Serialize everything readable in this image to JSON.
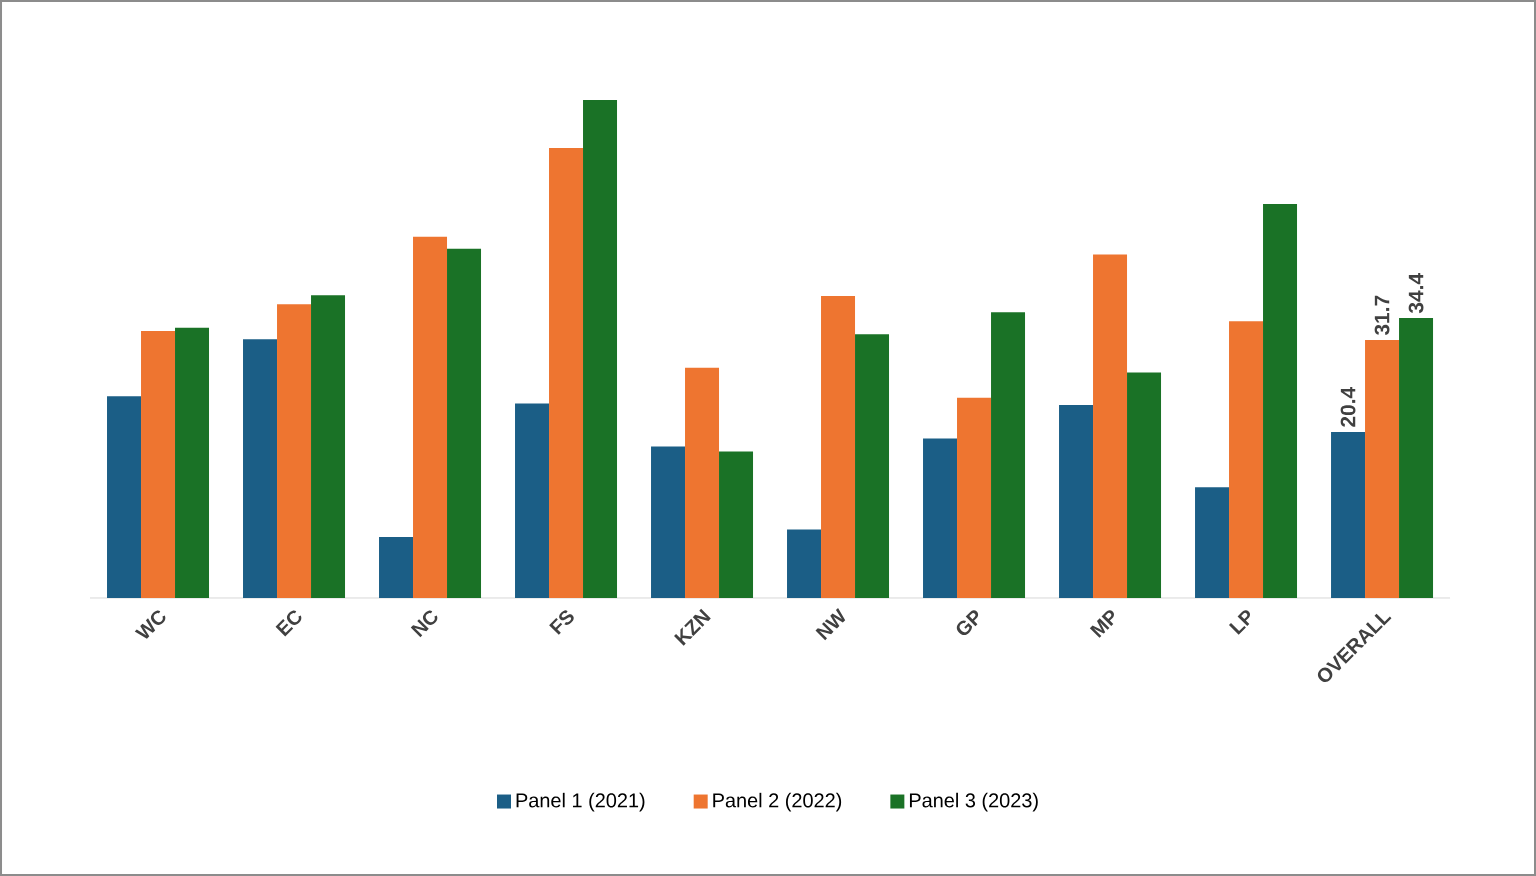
{
  "chart_data": {
    "type": "bar",
    "categories": [
      "WC",
      "EC",
      "NC",
      "FS",
      "KZN",
      "NW",
      "GP",
      "MP",
      "LP",
      "OVERALL"
    ],
    "series": [
      {
        "name": "Panel 1 (2021)",
        "color": "#1b5e86",
        "values": [
          24.8,
          31.8,
          7.5,
          23.9,
          18.6,
          8.4,
          19.6,
          23.7,
          13.6,
          20.4
        ],
        "value_labels": [
          null,
          null,
          null,
          null,
          null,
          null,
          null,
          null,
          null,
          "20.4"
        ]
      },
      {
        "name": "Panel 2 (2022)",
        "color": "#ee7530",
        "values": [
          32.8,
          36.1,
          44.4,
          55.3,
          28.3,
          37.1,
          24.6,
          42.2,
          34.0,
          31.7
        ],
        "value_labels": [
          null,
          null,
          null,
          null,
          null,
          null,
          null,
          null,
          null,
          "31.7"
        ]
      },
      {
        "name": "Panel 3 (2023)",
        "color": "#1a7226",
        "values": [
          33.2,
          37.2,
          42.9,
          61.2,
          18.0,
          32.4,
          35.1,
          27.7,
          48.4,
          34.4
        ],
        "value_labels": [
          null,
          null,
          null,
          null,
          null,
          null,
          null,
          null,
          null,
          "34.4"
        ]
      }
    ],
    "tick_labels": "x",
    "grid": false,
    "legend": "bottom"
  }
}
